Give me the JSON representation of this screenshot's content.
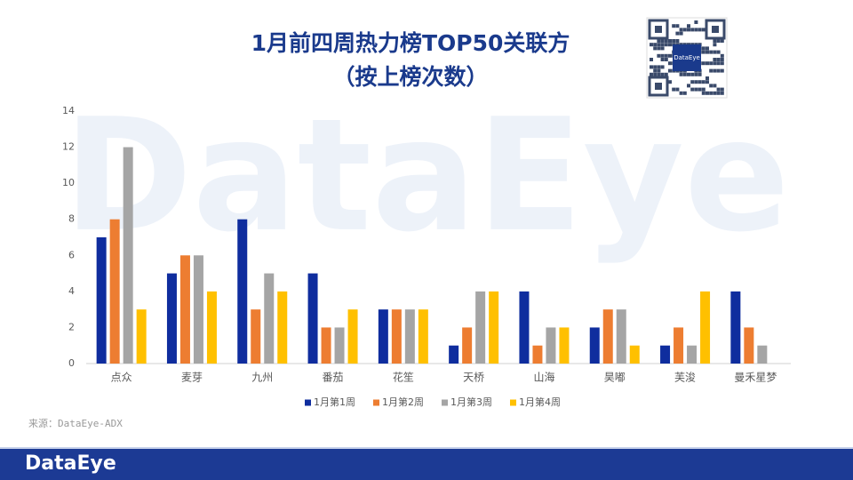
{
  "chart_data": {
    "type": "bar",
    "title": "1月前四周热力榜TOP50关联方",
    "subtitle": "（按上榜次数）",
    "categories": [
      "点众",
      "麦芽",
      "九州",
      "番茄",
      "花笙",
      "天桥",
      "山海",
      "昊嘟",
      "芙浚",
      "曼禾星梦"
    ],
    "series": [
      {
        "name": "1月第1周",
        "color": "#0f2d9e",
        "values": [
          7,
          5,
          8,
          5,
          3,
          1,
          4,
          2,
          1,
          4
        ]
      },
      {
        "name": "1月第2周",
        "color": "#ed7d31",
        "values": [
          8,
          6,
          3,
          2,
          3,
          2,
          1,
          3,
          2,
          2
        ]
      },
      {
        "name": "1月第3周",
        "color": "#a5a5a5",
        "values": [
          12,
          6,
          5,
          2,
          3,
          4,
          2,
          3,
          1,
          1
        ]
      },
      {
        "name": "1月第4周",
        "color": "#ffc000",
        "values": [
          3,
          4,
          4,
          3,
          3,
          4,
          2,
          1,
          4,
          0
        ]
      }
    ],
    "ylim": [
      0,
      14
    ],
    "yticks": [
      0,
      2,
      4,
      6,
      8,
      10,
      12,
      14
    ],
    "grid": false,
    "legend": "bottom",
    "source": "来源：DataEye-ADX",
    "watermark": "DataEye",
    "qr_label": "DataEye",
    "footer_logo": "DataEye"
  }
}
